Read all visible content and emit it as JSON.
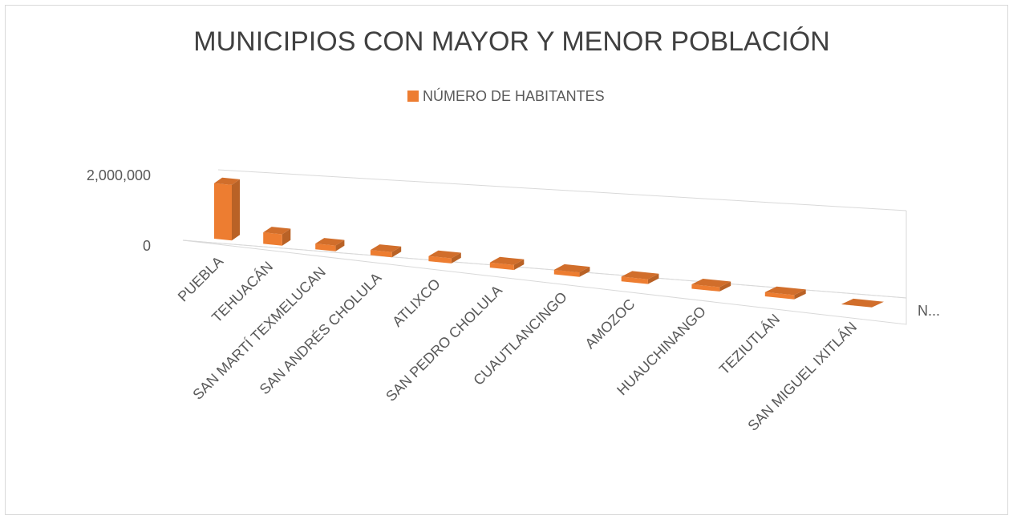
{
  "chart_data": {
    "type": "bar3d",
    "title": "MUNICIPIOS CON MAYOR Y MENOR POBLACIÓN",
    "depth_axis_label": "N...",
    "categories": [
      "PUEBLA",
      "TEHUACÁN",
      "SAN MARTÍ TEXMELUCAN",
      "SAN ANDRÉS CHOLULA",
      "ATLIXCO",
      "SAN PEDRO CHOLULA",
      "CUAUTLANCINGO",
      "AMOZOC",
      "HUAUCHINANGO",
      "TEZIUTLÁN",
      "SAN MIGUEL IXITLÁN"
    ],
    "series": [
      {
        "name": "NÚMERO DE HABITANTES",
        "color": "#ed7d31",
        "values": [
          1576000,
          319000,
          156000,
          137000,
          134000,
          129000,
          112000,
          115000,
          104000,
          98000,
          1000
        ]
      }
    ],
    "ylim": [
      0,
      2000000
    ],
    "yticks": [
      0,
      {
        "value": 2000000,
        "label": "2,000,000"
      }
    ],
    "grid": true,
    "legend": "top"
  }
}
